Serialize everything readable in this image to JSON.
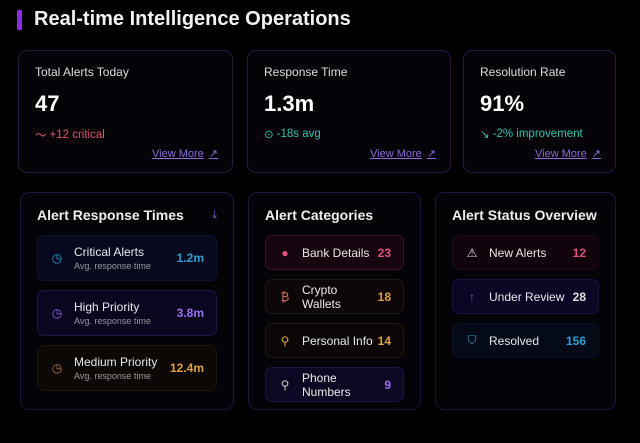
{
  "header": {
    "title": "Real-time Intelligence Operations"
  },
  "stats": [
    {
      "label": "Total Alerts Today",
      "value": "47",
      "icon": "trend-up-icon",
      "change": "+12 critical",
      "change_color": "#e0526e",
      "link": "View More"
    },
    {
      "label": "Response Time",
      "value": "1.3m",
      "icon": "check-circle-icon",
      "change": "-18s avg",
      "change_color": "#2fc4b2",
      "link": "View More"
    },
    {
      "label": "Resolution Rate",
      "value": "91%",
      "icon": "trend-down-icon",
      "change": "-2% improvement",
      "change_color": "#2fc4b2",
      "link": "View More"
    }
  ],
  "response_times": {
    "title": "Alert Response Times",
    "items": [
      {
        "name": "Critical Alerts",
        "sub": "Avg. response time",
        "value": "1.2m",
        "color": "#2a9fd6"
      },
      {
        "name": "High Priority",
        "sub": "Avg. response time",
        "value": "3.8m",
        "color": "#9b6ef0"
      },
      {
        "name": "Medium Priority",
        "sub": "Avg. response time",
        "value": "12.4m",
        "color": "#e0a040"
      }
    ]
  },
  "categories": {
    "title": "Alert Categories",
    "items": [
      {
        "name": "Bank Details",
        "value": "23",
        "icon": "bank-icon",
        "color": "#e0527e"
      },
      {
        "name": "Crypto Wallets",
        "value": "18",
        "icon": "crypto-icon",
        "color": "#e0a040"
      },
      {
        "name": "Personal Info",
        "value": "14",
        "icon": "user-icon",
        "color": "#e0a040"
      },
      {
        "name": "Phone Numbers",
        "value": "9",
        "icon": "user-icon",
        "color": "#9b6ef0"
      }
    ]
  },
  "status": {
    "title": "Alert Status Overview",
    "items": [
      {
        "name": "New Alerts",
        "value": "12",
        "icon": "warning-icon",
        "color": "#e0527e"
      },
      {
        "name": "Under Review",
        "value": "28",
        "icon": "arrow-up-icon",
        "color": "#e0e0e0"
      },
      {
        "name": "Resolved",
        "value": "156",
        "icon": "shield-icon",
        "color": "#2a9fd6"
      }
    ]
  }
}
